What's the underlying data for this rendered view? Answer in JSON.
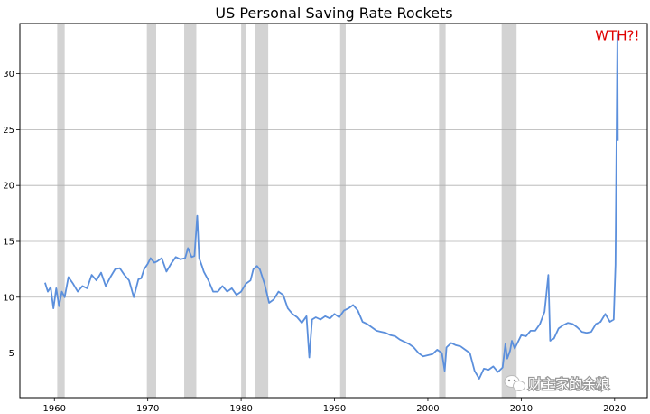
{
  "chart_data": {
    "type": "line",
    "title": "US Personal Saving Rate Rockets",
    "xlabel": "",
    "ylabel": "",
    "xlim": [
      1956.3,
      2023.5
    ],
    "ylim": [
      1.0,
      34.5
    ],
    "xticks": [
      1960,
      1970,
      1980,
      1990,
      2000,
      2010,
      2020
    ],
    "yticks": [
      5,
      10,
      15,
      20,
      25,
      30
    ],
    "grid": "horizontal",
    "line_color": "#5b8fdc",
    "band_color": "#d3d3d3",
    "recession_bands": [
      [
        1960.3,
        1961.1
      ],
      [
        1969.9,
        1970.9
      ],
      [
        1973.9,
        1975.2
      ],
      [
        1980.0,
        1980.5
      ],
      [
        1981.5,
        1982.9
      ],
      [
        1990.6,
        1991.2
      ],
      [
        2001.2,
        2001.9
      ],
      [
        2007.9,
        2009.5
      ]
    ],
    "series": [
      {
        "x": [
          1959.0,
          1959.3,
          1959.6,
          1959.9,
          1960.2,
          1960.5,
          1960.8,
          1961.1,
          1961.5,
          1962.0,
          1962.5,
          1963.0,
          1963.5,
          1964.0,
          1964.5,
          1965.0,
          1965.5,
          1966.0,
          1966.5,
          1967.0,
          1967.5,
          1968.0,
          1968.5,
          1969.0,
          1969.3,
          1969.6,
          1970.0,
          1970.3,
          1970.7,
          1971.0,
          1971.5,
          1972.0,
          1972.5,
          1973.0,
          1973.5,
          1974.0,
          1974.3,
          1974.7,
          1975.0,
          1975.3,
          1975.5,
          1975.8,
          1976.0,
          1976.5,
          1977.0,
          1977.5,
          1978.0,
          1978.5,
          1979.0,
          1979.5,
          1980.0,
          1980.5,
          1981.0,
          1981.3,
          1981.7,
          1982.0,
          1982.5,
          1983.0,
          1983.5,
          1984.0,
          1984.5,
          1985.0,
          1985.5,
          1986.0,
          1986.5,
          1987.0,
          1987.3,
          1987.6,
          1988.0,
          1988.5,
          1989.0,
          1989.5,
          1990.0,
          1990.5,
          1991.0,
          1991.5,
          1992.0,
          1992.5,
          1993.0,
          1993.5,
          1994.0,
          1994.5,
          1995.0,
          1995.5,
          1996.0,
          1996.5,
          1997.0,
          1997.5,
          1998.0,
          1998.5,
          1999.0,
          1999.5,
          2000.0,
          2000.5,
          2001.0,
          2001.5,
          2001.8,
          2002.0,
          2002.5,
          2003.0,
          2003.5,
          2004.0,
          2004.5,
          2005.0,
          2005.5,
          2006.0,
          2006.5,
          2007.0,
          2007.5,
          2008.0,
          2008.3,
          2008.5,
          2008.8,
          2009.0,
          2009.3,
          2009.6,
          2010.0,
          2010.5,
          2011.0,
          2011.5,
          2012.0,
          2012.5,
          2012.9,
          2013.1,
          2013.5,
          2014.0,
          2014.5,
          2015.0,
          2015.5,
          2016.0,
          2016.5,
          2017.0,
          2017.5,
          2018.0,
          2018.5,
          2019.0,
          2019.5,
          2019.9,
          2020.1,
          2020.3,
          2020.35
        ],
        "values": [
          11.3,
          10.5,
          10.9,
          9.0,
          10.8,
          9.2,
          10.5,
          10.0,
          11.8,
          11.2,
          10.5,
          11.0,
          10.8,
          12.0,
          11.5,
          12.2,
          11.0,
          11.8,
          12.5,
          12.6,
          12.0,
          11.5,
          10.0,
          11.6,
          11.7,
          12.5,
          13.0,
          13.5,
          13.1,
          13.2,
          13.5,
          12.3,
          13.0,
          13.6,
          13.4,
          13.5,
          14.4,
          13.6,
          13.7,
          17.3,
          13.5,
          12.8,
          12.3,
          11.5,
          10.5,
          10.5,
          11.0,
          10.5,
          10.8,
          10.2,
          10.5,
          11.2,
          11.5,
          12.5,
          12.8,
          12.5,
          11.2,
          9.5,
          9.8,
          10.5,
          10.2,
          9.0,
          8.5,
          8.2,
          7.7,
          8.3,
          4.6,
          8.0,
          8.2,
          8.0,
          8.3,
          8.1,
          8.5,
          8.2,
          8.8,
          9.0,
          9.3,
          8.8,
          7.8,
          7.6,
          7.3,
          7.0,
          6.9,
          6.8,
          6.6,
          6.5,
          6.2,
          6.0,
          5.8,
          5.5,
          5.0,
          4.7,
          4.8,
          4.9,
          5.3,
          5.0,
          3.4,
          5.5,
          5.9,
          5.7,
          5.6,
          5.3,
          5.0,
          3.4,
          2.7,
          3.6,
          3.5,
          3.8,
          3.3,
          3.7,
          5.8,
          4.5,
          5.2,
          6.1,
          5.4,
          5.9,
          6.6,
          6.5,
          7.0,
          7.0,
          7.6,
          8.7,
          12.0,
          6.1,
          6.3,
          7.2,
          7.5,
          7.7,
          7.6,
          7.3,
          6.9,
          6.8,
          6.9,
          7.6,
          7.8,
          8.5,
          7.8,
          8.0,
          12.9,
          33.5,
          24.0
        ]
      }
    ],
    "annotation": {
      "text": "WTH?!",
      "x": 2020.3,
      "y": 33.4
    }
  },
  "watermark": {
    "text": "财主家的余粮",
    "icon": "wechat-icon"
  }
}
